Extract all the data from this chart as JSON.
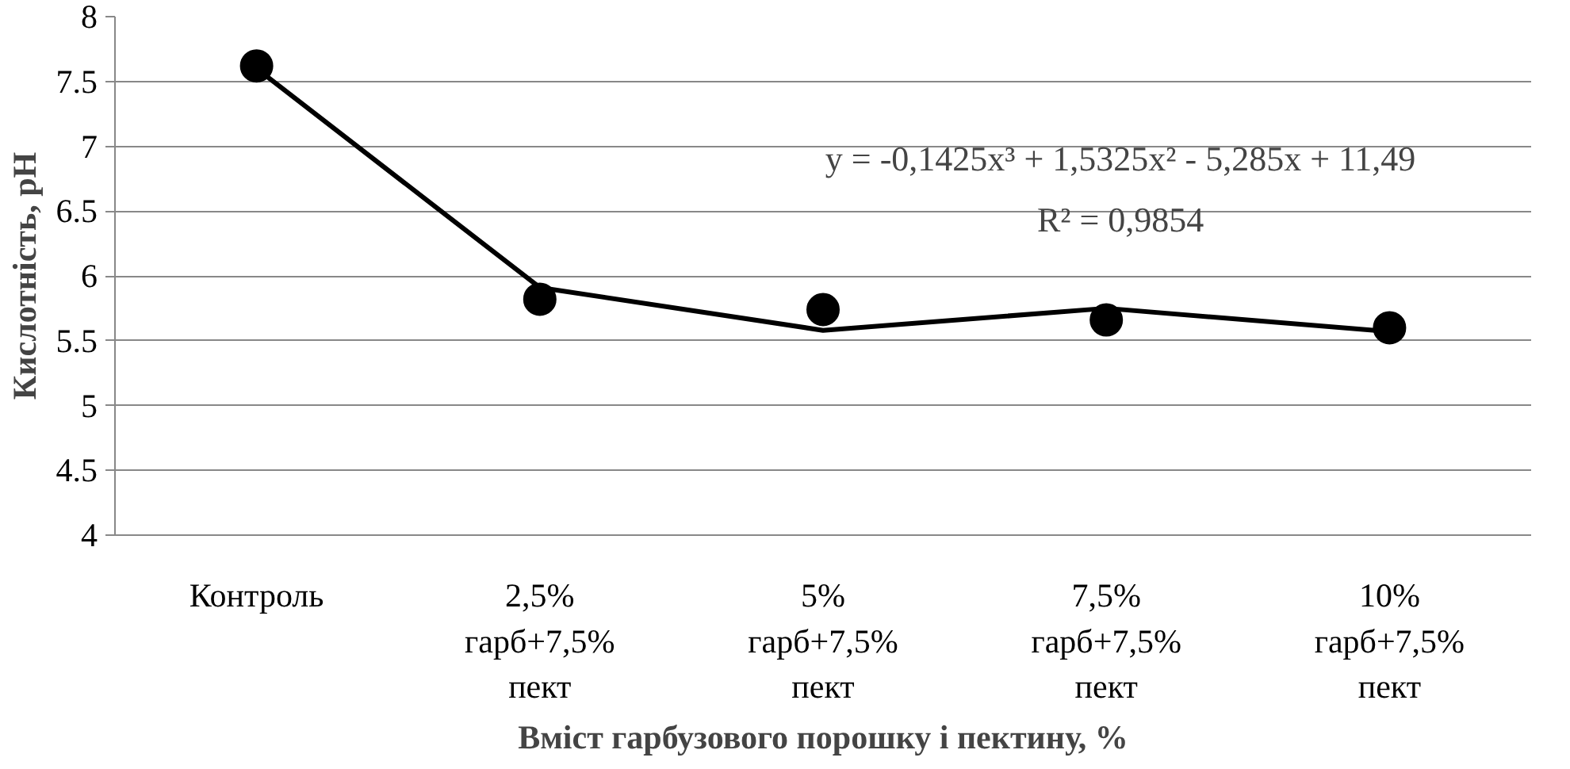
{
  "chart_data": {
    "type": "scatter",
    "xlabel": "Вміст гарбузового порошку і пектину, %",
    "ylabel": "Кислотність, pH",
    "categories": [
      "Контроль",
      "2,5% гарб+7,5% пект",
      "5% гарб+7,5% пект",
      "7,5% гарб+7,5% пект",
      "10% гарб+7,5% пект"
    ],
    "series": [
      {
        "color": "#000000",
        "values": [
          7.62,
          5.82,
          5.74,
          5.66,
          5.6
        ]
      },
      {
        "type": "line",
        "marker": "none",
        "color": "#000000",
        "values": [
          7.6,
          5.91,
          5.58,
          5.75,
          5.57
        ]
      }
    ],
    "ylim": [
      4,
      8
    ],
    "yticks": [
      4,
      4.5,
      5,
      5.5,
      6,
      6.5,
      7,
      7.5,
      8
    ],
    "grid": "y",
    "marker": "circle",
    "line_style": "solid",
    "annotations": [
      "y = -0,1425x³ + 1,5325x² - 5,285x + 11,49",
      "R² = 0,9854"
    ]
  }
}
